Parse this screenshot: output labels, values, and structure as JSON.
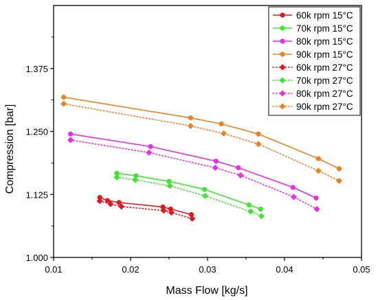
{
  "chart_data": {
    "type": "line",
    "title": "",
    "xlabel": "Mass Flow [kg/s]",
    "ylabel": "Compression [bar]",
    "xlim": [
      0.01,
      0.05
    ],
    "ylim": [
      1.0,
      1.5
    ],
    "xticks": [
      "0.01",
      "0.02",
      "0.03",
      "0.04",
      "0.05"
    ],
    "yticks": [
      "1.000",
      "1.125",
      "1.250",
      "1.375"
    ],
    "grid": false,
    "legend_position": "top-right",
    "series": [
      {
        "name": "60k rpm 15°C",
        "color": "#e8141b",
        "marker": "circle",
        "line": "solid",
        "x": [
          0.016,
          0.017,
          0.0185,
          0.0242,
          0.0252,
          0.0279
        ],
        "y": [
          1.119,
          1.113,
          1.109,
          1.1,
          1.096,
          1.085
        ]
      },
      {
        "name": "70k rpm 15°C",
        "color": "#3ee62c",
        "marker": "circle",
        "line": "solid",
        "x": [
          0.0182,
          0.0207,
          0.025,
          0.0296,
          0.0354,
          0.0369
        ],
        "y": [
          1.167,
          1.162,
          1.151,
          1.135,
          1.104,
          1.096
        ]
      },
      {
        "name": "80k rpm 15°C",
        "color": "#ee2ae6",
        "marker": "circle",
        "line": "solid",
        "x": [
          0.0122,
          0.0226,
          0.0311,
          0.034,
          0.0411,
          0.0441
        ],
        "y": [
          1.245,
          1.22,
          1.191,
          1.178,
          1.139,
          1.118
        ]
      },
      {
        "name": "90k rpm 15°C",
        "color": "#f0801e",
        "marker": "circle",
        "line": "solid",
        "x": [
          0.0113,
          0.0278,
          0.0318,
          0.0366,
          0.0444,
          0.0471
        ],
        "y": [
          1.318,
          1.277,
          1.265,
          1.245,
          1.196,
          1.176
        ]
      },
      {
        "name": "60k rpm 27°C",
        "color": "#e8141b",
        "marker": "diamond",
        "line": "dotted",
        "x": [
          0.016,
          0.0174,
          0.0188,
          0.0243,
          0.0253,
          0.028
        ],
        "y": [
          1.112,
          1.106,
          1.101,
          1.093,
          1.089,
          1.077
        ]
      },
      {
        "name": "70k rpm 27°C",
        "color": "#3ee62c",
        "marker": "diamond",
        "line": "dotted",
        "x": [
          0.0182,
          0.0206,
          0.0251,
          0.0297,
          0.0356,
          0.037
        ],
        "y": [
          1.159,
          1.154,
          1.142,
          1.122,
          1.091,
          1.082
        ]
      },
      {
        "name": "80k rpm 27°C",
        "color": "#ee2ae6",
        "marker": "diamond",
        "line": "dotted",
        "x": [
          0.0122,
          0.0224,
          0.031,
          0.0343,
          0.0412,
          0.0442
        ],
        "y": [
          1.233,
          1.208,
          1.178,
          1.163,
          1.12,
          1.096
        ]
      },
      {
        "name": "90k rpm 27°C",
        "color": "#f0801e",
        "marker": "diamond",
        "line": "dotted",
        "x": [
          0.0113,
          0.0278,
          0.0321,
          0.0366,
          0.0444,
          0.0471
        ],
        "y": [
          1.305,
          1.261,
          1.246,
          1.225,
          1.172,
          1.152
        ]
      }
    ]
  }
}
